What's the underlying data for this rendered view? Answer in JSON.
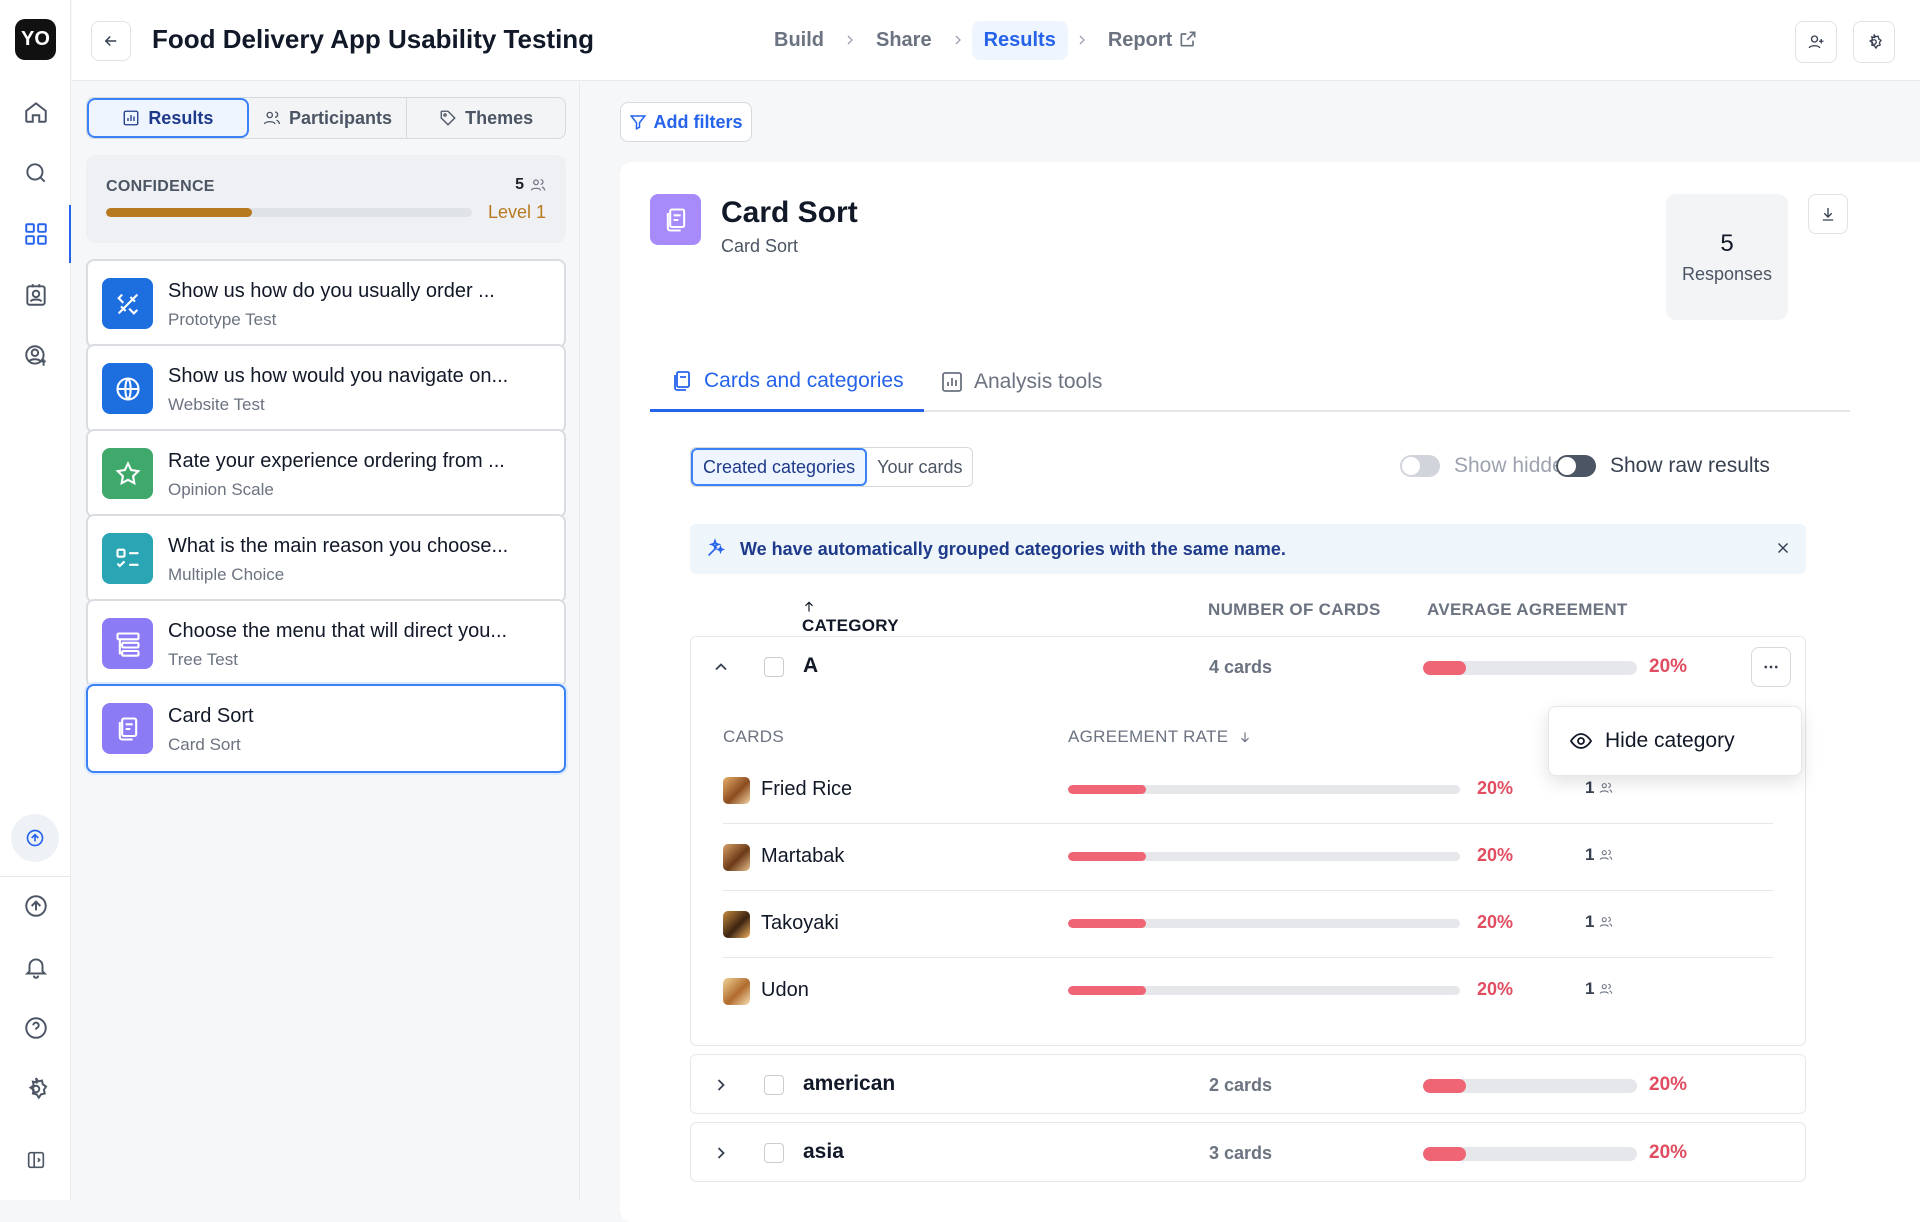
{
  "app": {
    "logo": "YO",
    "title": "Food Delivery App Usability Testing"
  },
  "breadcrumbs": [
    {
      "label": "Build"
    },
    {
      "label": "Share"
    },
    {
      "label": "Results"
    },
    {
      "label": "Report"
    }
  ],
  "left_tabs": [
    {
      "label": "Results",
      "icon": "bar-chart-icon"
    },
    {
      "label": "Participants",
      "icon": "users-icon"
    },
    {
      "label": "Themes",
      "icon": "tag-icon"
    }
  ],
  "confidence": {
    "label": "CONFIDENCE",
    "count": "5",
    "level": "Level 1",
    "progress": 0.4,
    "color": "#b7791f"
  },
  "questions": [
    {
      "title": "Show us how do you usually order ...",
      "type": "Prototype Test",
      "icon": "prototype-icon",
      "color": "#1d6fe0"
    },
    {
      "title": "Show us how would you navigate on...",
      "type": "Website Test",
      "icon": "globe-icon",
      "color": "#1d6fe0"
    },
    {
      "title": "Rate your experience ordering from ...",
      "type": "Opinion Scale",
      "icon": "star-icon",
      "color": "#3fa96b"
    },
    {
      "title": "What is the main reason you choose...",
      "type": "Multiple Choice",
      "icon": "checklist-icon",
      "color": "#2aa5b3"
    },
    {
      "title": "Choose the menu that will direct you...",
      "type": "Tree Test",
      "icon": "tree-icon",
      "color": "#8b7cf6"
    },
    {
      "title": "Card Sort",
      "type": "Card Sort",
      "icon": "card-sort-icon",
      "color": "#8b7cf6"
    }
  ],
  "main": {
    "add_filters": "Add filters",
    "title": "Card Sort",
    "subtitle": "Card Sort",
    "responses_count": "5",
    "responses_label": "Responses",
    "tabs": [
      {
        "label": "Cards and categories"
      },
      {
        "label": "Analysis tools"
      }
    ],
    "subtabs": [
      {
        "label": "Created categories"
      },
      {
        "label": "Your cards"
      }
    ],
    "toggles": {
      "show_hidden": "Show hidden",
      "show_raw": "Show raw results"
    },
    "banner": "We have automatically grouped categories with the same name.",
    "columns": {
      "category": "CATEGORY",
      "number_of_cards": "NUMBER OF CARDS",
      "average_agreement": "AVERAGE AGREEMENT"
    },
    "card_columns": {
      "cards": "CARDS",
      "agreement_rate": "AGREEMENT RATE"
    },
    "menu": {
      "hide_category": "Hide category"
    }
  },
  "categories": [
    {
      "name": "A",
      "count": "4 cards",
      "agreement": "20%",
      "agreement_value": 0.2,
      "expanded": true,
      "cards": [
        {
          "name": "Fried Rice",
          "rate": "20%",
          "rate_value": 0.2,
          "n": "1"
        },
        {
          "name": "Martabak",
          "rate": "20%",
          "rate_value": 0.2,
          "n": "1"
        },
        {
          "name": "Takoyaki",
          "rate": "20%",
          "rate_value": 0.2,
          "n": "1"
        },
        {
          "name": "Udon",
          "rate": "20%",
          "rate_value": 0.2,
          "n": "1"
        }
      ]
    },
    {
      "name": "american",
      "count": "2 cards",
      "agreement": "20%",
      "agreement_value": 0.2,
      "expanded": false
    },
    {
      "name": "asia",
      "count": "3 cards",
      "agreement": "20%",
      "agreement_value": 0.2,
      "expanded": false
    }
  ],
  "colors": {
    "accent": "#2563eb",
    "danger": "#e14d60",
    "bar": "#f06575"
  }
}
